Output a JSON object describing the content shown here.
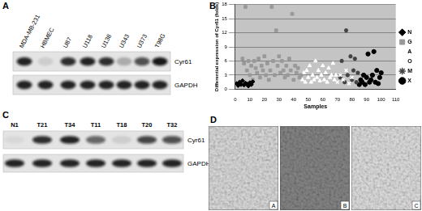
{
  "chart_data": {
    "type": "scatter",
    "x_label": "Samples",
    "y_label": "Differential expression of Cyr61 (folds)",
    "xlim": [
      0,
      110
    ],
    "xticks": [
      0,
      10,
      20,
      30,
      40,
      50,
      60,
      70,
      80,
      90,
      100,
      110
    ],
    "ylim": [
      0,
      18
    ],
    "yticks": [
      0,
      3,
      6,
      9,
      12,
      15,
      18
    ],
    "grid": true,
    "legend": "right",
    "series": [
      {
        "name": "N",
        "color": "#000000",
        "marker": "diamond",
        "x": [
          1,
          2,
          3,
          4,
          5,
          6,
          7,
          8,
          9,
          10,
          11,
          12
        ],
        "values": [
          1.2,
          0.8,
          1.5,
          1,
          1.8,
          0.9,
          1.3,
          1.1,
          0.7,
          1.4,
          1,
          1.6
        ]
      },
      {
        "name": "G",
        "color": "#999999",
        "marker": "square",
        "x": [
          5,
          6,
          7,
          8,
          9,
          10,
          11,
          12,
          13,
          14,
          15,
          16,
          17,
          18,
          19,
          20,
          21,
          22,
          23,
          24,
          25,
          26,
          27,
          28,
          29,
          30,
          31,
          32,
          33,
          34,
          35,
          36,
          37,
          38,
          39,
          40,
          41,
          42,
          43,
          44,
          45
        ],
        "values": [
          6.5,
          5.5,
          17.5,
          4,
          6,
          3,
          5,
          2,
          6,
          4.5,
          3.5,
          6.5,
          2.5,
          5,
          4,
          7,
          3,
          5.5,
          2,
          4,
          17.5,
          6,
          3,
          12.5,
          5,
          7,
          3.5,
          6,
          4,
          2.5,
          5,
          3,
          6.5,
          4,
          16,
          2,
          5,
          3.5,
          4.5,
          2.5,
          3
        ]
      },
      {
        "name": "A",
        "color": "#ffffff",
        "marker": "triangle",
        "x": [
          46,
          47,
          48,
          49,
          50,
          51,
          52,
          53,
          54,
          55,
          56,
          57,
          58,
          59,
          60,
          61,
          62,
          63,
          64,
          65,
          66,
          67,
          68,
          69
        ],
        "values": [
          2,
          3.5,
          1.5,
          4,
          2.5,
          5,
          1.5,
          3,
          2,
          6,
          2.5,
          4,
          1.8,
          3,
          5,
          2,
          3.5,
          1.5,
          4.5,
          2.5,
          3,
          5.5,
          2,
          3
        ]
      },
      {
        "name": "O",
        "color": "#ffffff",
        "marker": "x",
        "x": [
          70,
          72,
          74,
          76,
          78,
          80
        ],
        "values": [
          1.5,
          3,
          2,
          4,
          1.2,
          2.5
        ]
      },
      {
        "name": "M",
        "color": "#444444",
        "marker": "star",
        "x": [
          72,
          73,
          75,
          76,
          77,
          79,
          80,
          81,
          82,
          83,
          84
        ],
        "values": [
          2.5,
          6,
          1.5,
          12.5,
          3,
          7,
          2,
          4,
          6.5,
          1.5,
          3.5
        ]
      },
      {
        "name": "X",
        "color": "#000000",
        "marker": "circle",
        "x": [
          85,
          86,
          87,
          88,
          89,
          90,
          91,
          92,
          93,
          94,
          95,
          96,
          97,
          98,
          99,
          100
        ],
        "values": [
          1,
          2,
          1.5,
          3,
          1,
          2.5,
          7.5,
          1.5,
          2,
          3,
          8,
          1.5,
          4,
          1.2,
          2.5,
          3.5
        ]
      }
    ]
  },
  "panels": {
    "A": {
      "label": "A",
      "lanes": [
        "MDA-MB-231",
        "HBMEC",
        "U87",
        "U118",
        "U138",
        "U343",
        "U373",
        "T98G"
      ],
      "blots": [
        {
          "name": "Cyr61",
          "intensity": [
            0.9,
            0.1,
            0.85,
            0.9,
            0.85,
            0.25,
            0.7,
            0.95
          ]
        },
        {
          "name": "GAPDH",
          "intensity": [
            0.9,
            0.9,
            0.9,
            0.9,
            0.9,
            0.9,
            0.9,
            0.9
          ]
        }
      ]
    },
    "B": {
      "label": "B"
    },
    "C": {
      "label": "C",
      "lanes": [
        "N1",
        "T21",
        "T34",
        "T11",
        "T18",
        "T20",
        "T32"
      ],
      "blots": [
        {
          "name": "Cyr61",
          "intensity": [
            0.05,
            0.85,
            0.9,
            0.6,
            0.1,
            0.75,
            0.7
          ]
        },
        {
          "name": "GAPDH",
          "intensity": [
            0.9,
            0.9,
            0.9,
            0.9,
            0.9,
            0.9,
            0.9
          ]
        }
      ]
    },
    "D": {
      "label": "D",
      "images": [
        "A",
        "B",
        "C"
      ]
    }
  }
}
